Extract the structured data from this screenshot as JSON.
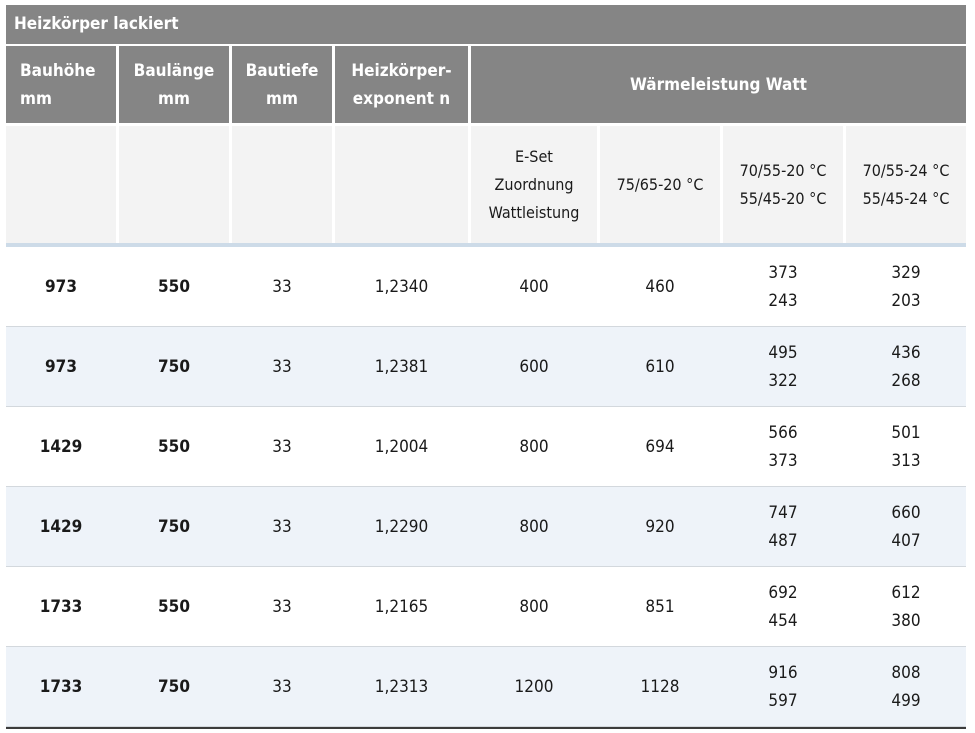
{
  "title": "Heizkörper lackiert",
  "headers": {
    "bauhoehe": [
      "Bauhöhe",
      "mm"
    ],
    "baulaenge": [
      "Baulänge",
      "mm"
    ],
    "bautiefe": [
      "Bautiefe",
      "mm"
    ],
    "exponent": [
      "Heizkörper-",
      "exponent n"
    ],
    "waermeleistung": "Wärmeleistung Watt"
  },
  "subheaders": {
    "eset": [
      "E-Set",
      "Zuordnung",
      "Wattleistung"
    ],
    "t75": "75/65-20 °C",
    "t70_20": [
      "70/55-20 °C",
      "55/45-20 °C"
    ],
    "t70_24": [
      "70/55-24 °C",
      "55/45-24 °C"
    ]
  },
  "rows": [
    {
      "hoehe": "973",
      "laenge": "550",
      "tiefe": "33",
      "exp": "1,2340",
      "eset": "400",
      "t75": "460",
      "t20": [
        "373",
        "243"
      ],
      "t24": [
        "329",
        "203"
      ]
    },
    {
      "hoehe": "973",
      "laenge": "750",
      "tiefe": "33",
      "exp": "1,2381",
      "eset": "600",
      "t75": "610",
      "t20": [
        "495",
        "322"
      ],
      "t24": [
        "436",
        "268"
      ]
    },
    {
      "hoehe": "1429",
      "laenge": "550",
      "tiefe": "33",
      "exp": "1,2004",
      "eset": "800",
      "t75": "694",
      "t20": [
        "566",
        "373"
      ],
      "t24": [
        "501",
        "313"
      ]
    },
    {
      "hoehe": "1429",
      "laenge": "750",
      "tiefe": "33",
      "exp": "1,2290",
      "eset": "800",
      "t75": "920",
      "t20": [
        "747",
        "487"
      ],
      "t24": [
        "660",
        "407"
      ]
    },
    {
      "hoehe": "1733",
      "laenge": "550",
      "tiefe": "33",
      "exp": "1,2165",
      "eset": "800",
      "t75": "851",
      "t20": [
        "692",
        "454"
      ],
      "t24": [
        "612",
        "380"
      ]
    },
    {
      "hoehe": "1733",
      "laenge": "750",
      "tiefe": "33",
      "exp": "1,2313",
      "eset": "1200",
      "t75": "1128",
      "t20": [
        "916",
        "597"
      ],
      "t24": [
        "808",
        "499"
      ]
    }
  ]
}
